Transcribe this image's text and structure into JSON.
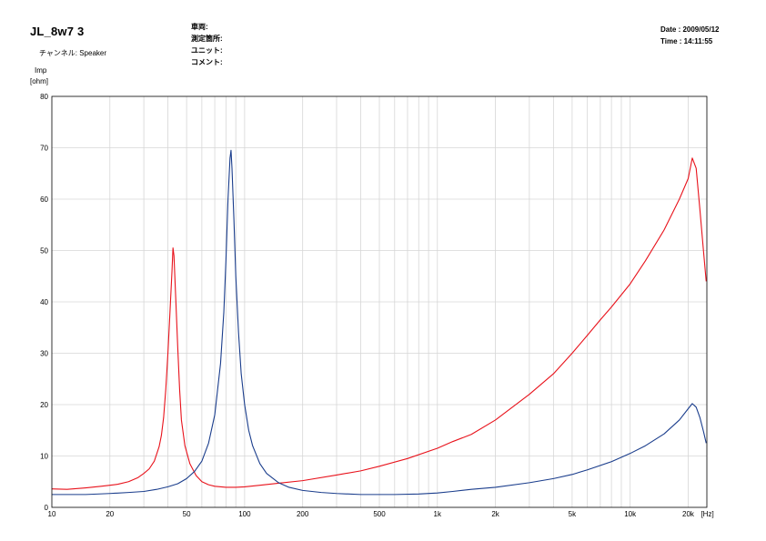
{
  "header": {
    "title": "JL_8w7 3",
    "channel_label": "チャンネル:",
    "channel_value": "Speaker",
    "fields": [
      {
        "label": "車両:",
        "value": ""
      },
      {
        "label": "測定箇所:",
        "value": ""
      },
      {
        "label": "ユニット:",
        "value": ""
      },
      {
        "label": "コメント:",
        "value": ""
      }
    ],
    "date": "Date : 2009/05/12",
    "time": "Time : 14:11:55"
  },
  "chart_data": {
    "type": "line",
    "ylabel_line1": "Imp",
    "ylabel_line2": "[ohm]",
    "x_unit": "[Hz]",
    "x_scale": "log",
    "xlim": [
      10,
      25000
    ],
    "ylim": [
      0,
      80
    ],
    "grid": true,
    "yticks": [
      0,
      10,
      20,
      30,
      40,
      50,
      60,
      70,
      80
    ],
    "xticks": [
      {
        "value": 10,
        "label": "10"
      },
      {
        "value": 20,
        "label": "20"
      },
      {
        "value": 50,
        "label": "50"
      },
      {
        "value": 100,
        "label": "100"
      },
      {
        "value": 200,
        "label": "200"
      },
      {
        "value": 500,
        "label": "500"
      },
      {
        "value": 1000,
        "label": "1k"
      },
      {
        "value": 2000,
        "label": "2k"
      },
      {
        "value": 5000,
        "label": "5k"
      },
      {
        "value": 10000,
        "label": "10k"
      },
      {
        "value": 20000,
        "label": "20k"
      }
    ],
    "series": [
      {
        "color": "#e8121b",
        "points": [
          [
            10,
            3.6
          ],
          [
            12,
            3.5
          ],
          [
            15,
            3.8
          ],
          [
            18,
            4.1
          ],
          [
            20,
            4.3
          ],
          [
            22,
            4.5
          ],
          [
            25,
            5.0
          ],
          [
            28,
            5.8
          ],
          [
            30,
            6.6
          ],
          [
            32,
            7.5
          ],
          [
            34,
            9.0
          ],
          [
            36,
            11.8
          ],
          [
            37,
            14
          ],
          [
            38,
            17.5
          ],
          [
            39,
            23
          ],
          [
            40,
            30
          ],
          [
            41,
            38
          ],
          [
            42,
            46
          ],
          [
            42.5,
            50.5
          ],
          [
            43,
            49
          ],
          [
            44,
            40
          ],
          [
            45,
            31
          ],
          [
            46,
            23
          ],
          [
            47,
            17
          ],
          [
            49,
            12
          ],
          [
            52,
            8.5
          ],
          [
            56,
            6.2
          ],
          [
            60,
            5.0
          ],
          [
            65,
            4.4
          ],
          [
            70,
            4.1
          ],
          [
            80,
            3.9
          ],
          [
            90,
            3.9
          ],
          [
            100,
            4.0
          ],
          [
            120,
            4.3
          ],
          [
            150,
            4.7
          ],
          [
            200,
            5.2
          ],
          [
            300,
            6.3
          ],
          [
            400,
            7.1
          ],
          [
            500,
            8.0
          ],
          [
            700,
            9.5
          ],
          [
            1000,
            11.5
          ],
          [
            1200,
            12.8
          ],
          [
            1500,
            14.2
          ],
          [
            2000,
            17.0
          ],
          [
            3000,
            22.0
          ],
          [
            4000,
            26.0
          ],
          [
            5000,
            30.0
          ],
          [
            6000,
            33.5
          ],
          [
            7000,
            36.5
          ],
          [
            8000,
            39.0
          ],
          [
            10000,
            43.5
          ],
          [
            12000,
            48.0
          ],
          [
            15000,
            54.0
          ],
          [
            18000,
            60.0
          ],
          [
            20000,
            64.0
          ],
          [
            21000,
            68.0
          ],
          [
            22000,
            66.0
          ],
          [
            23000,
            58.0
          ],
          [
            24000,
            50.0
          ],
          [
            24800,
            44.0
          ]
        ]
      },
      {
        "color": "#1a3d8c",
        "points": [
          [
            10,
            2.5
          ],
          [
            15,
            2.5
          ],
          [
            20,
            2.7
          ],
          [
            25,
            2.9
          ],
          [
            30,
            3.1
          ],
          [
            35,
            3.5
          ],
          [
            40,
            4.0
          ],
          [
            45,
            4.6
          ],
          [
            50,
            5.6
          ],
          [
            55,
            7.0
          ],
          [
            60,
            9.0
          ],
          [
            65,
            12.5
          ],
          [
            70,
            18.0
          ],
          [
            75,
            28.0
          ],
          [
            78,
            38.0
          ],
          [
            80,
            48.0
          ],
          [
            82,
            60.0
          ],
          [
            84,
            68.0
          ],
          [
            85,
            69.5
          ],
          [
            86,
            66.0
          ],
          [
            88,
            56.0
          ],
          [
            90,
            45.0
          ],
          [
            93,
            34.0
          ],
          [
            96,
            26.0
          ],
          [
            100,
            20.0
          ],
          [
            105,
            15.0
          ],
          [
            110,
            12.0
          ],
          [
            120,
            8.5
          ],
          [
            130,
            6.6
          ],
          [
            150,
            4.8
          ],
          [
            170,
            3.9
          ],
          [
            200,
            3.3
          ],
          [
            250,
            2.9
          ],
          [
            300,
            2.7
          ],
          [
            400,
            2.5
          ],
          [
            500,
            2.5
          ],
          [
            600,
            2.5
          ],
          [
            800,
            2.6
          ],
          [
            1000,
            2.8
          ],
          [
            1200,
            3.1
          ],
          [
            1500,
            3.5
          ],
          [
            2000,
            3.9
          ],
          [
            3000,
            4.8
          ],
          [
            4000,
            5.6
          ],
          [
            5000,
            6.4
          ],
          [
            6000,
            7.3
          ],
          [
            8000,
            8.9
          ],
          [
            10000,
            10.5
          ],
          [
            12000,
            12.0
          ],
          [
            15000,
            14.3
          ],
          [
            18000,
            17.0
          ],
          [
            20000,
            19.2
          ],
          [
            21000,
            20.2
          ],
          [
            22000,
            19.5
          ],
          [
            23000,
            17.5
          ],
          [
            24000,
            14.8
          ],
          [
            24800,
            12.5
          ]
        ]
      }
    ]
  }
}
